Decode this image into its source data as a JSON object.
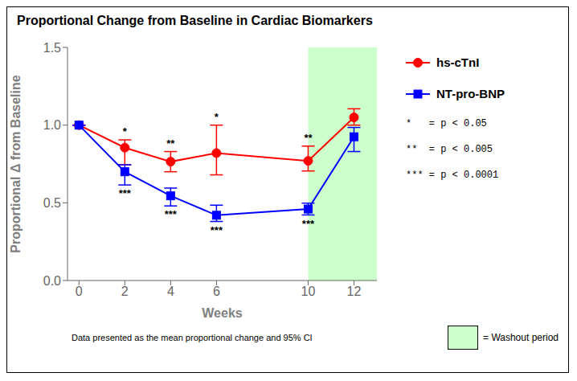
{
  "chart_data": {
    "type": "line",
    "title": "Proportional Change from Baseline in Cardiac Biomarkers",
    "x_label": "Weeks",
    "y_label": "Proportional Δ from Baseline",
    "x": [
      0,
      2,
      4,
      6,
      10,
      12
    ],
    "series": [
      {
        "name": "hs-cTnI",
        "color": "#FF0000",
        "marker": "circle",
        "values": [
          1.0,
          0.855,
          0.765,
          0.82,
          0.77,
          1.05
        ],
        "error_low": [
          0.0,
          0.11,
          0.065,
          0.14,
          0.065,
          0.05
        ],
        "error_high": [
          0.0,
          0.05,
          0.065,
          0.18,
          0.095,
          0.055
        ]
      },
      {
        "name": "NT-pro-BNP",
        "color": "#0000FF",
        "marker": "square",
        "values": [
          1.0,
          0.7,
          0.545,
          0.42,
          0.46,
          0.925
        ],
        "error_low": [
          0.0,
          0.085,
          0.065,
          0.04,
          0.038,
          0.095
        ],
        "error_high": [
          0.0,
          0.045,
          0.05,
          0.065,
          0.038,
          0.06
        ]
      }
    ],
    "xlim": [
      -0.5,
      13.0
    ],
    "ylim": [
      0.0,
      1.5
    ],
    "xticks": [
      0,
      2,
      4,
      6,
      10,
      12
    ],
    "yticks": [
      {
        "value": 0.0,
        "label": "0.0"
      },
      0.5,
      {
        "value": 1.0,
        "label": "1.0"
      },
      1.5
    ],
    "annotations": [
      {
        "series": "hs-cTnI",
        "x": 2,
        "text": "*",
        "position": "above"
      },
      {
        "series": "hs-cTnI",
        "x": 4,
        "text": "**",
        "position": "above"
      },
      {
        "series": "hs-cTnI",
        "x": 6,
        "text": "*",
        "position": "above"
      },
      {
        "series": "hs-cTnI",
        "x": 10,
        "text": "**",
        "position": "above"
      },
      {
        "series": "NT-pro-BNP",
        "x": 2,
        "text": "***",
        "position": "below"
      },
      {
        "series": "NT-pro-BNP",
        "x": 4,
        "text": "***",
        "position": "below"
      },
      {
        "series": "NT-pro-BNP",
        "x": 6,
        "text": "***",
        "position": "below"
      },
      {
        "series": "NT-pro-BNP",
        "x": 10,
        "text": "***",
        "position": "below"
      }
    ],
    "washout": {
      "start": 10,
      "end": 13,
      "color": "#CCFFCC",
      "label": "= Washout period"
    },
    "significance": [
      "*   = p < 0.05",
      "**  = p < 0.005",
      "*** = p < 0.0001"
    ],
    "footnote": "Data presented as the mean proportional change and 95% CI",
    "grid": false
  }
}
